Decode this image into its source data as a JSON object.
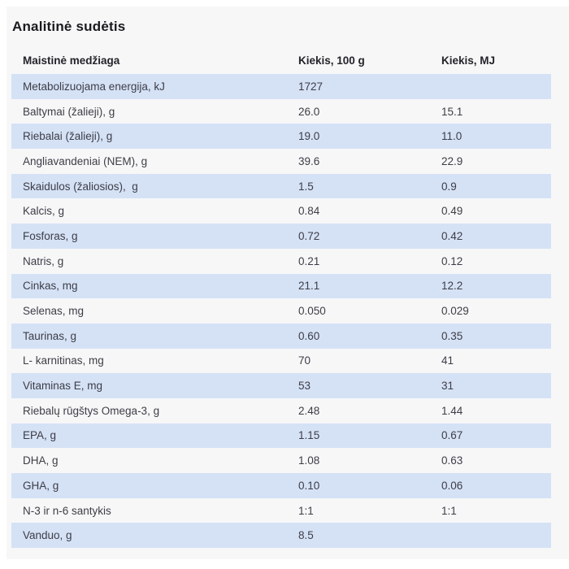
{
  "page": {
    "title": "Analitinė sudėtis"
  },
  "table": {
    "headers": {
      "nutrient": "Maistinė medžiaga",
      "per100g": "Kiekis, 100 g",
      "mj": "Kiekis, MJ"
    },
    "rows": [
      {
        "name": "Metabolizuojama energija, kJ",
        "q100": "1727",
        "qmj": ""
      },
      {
        "name": "Baltymai (žalieji), g",
        "q100": "26.0",
        "qmj": "15.1"
      },
      {
        "name": "Riebalai (žalieji), g",
        "q100": "19.0",
        "qmj": "11.0"
      },
      {
        "name": "Angliavandeniai (NEM), g",
        "q100": "39.6",
        "qmj": "22.9"
      },
      {
        "name": "Skaidulos (žaliosios),  g",
        "q100": "1.5",
        "qmj": "0.9"
      },
      {
        "name": "Kalcis, g",
        "q100": "0.84",
        "qmj": "0.49"
      },
      {
        "name": "Fosforas, g",
        "q100": "0.72",
        "qmj": "0.42"
      },
      {
        "name": "Natris, g",
        "q100": "0.21",
        "qmj": "0.12"
      },
      {
        "name": "Cinkas, mg",
        "q100": "21.1",
        "qmj": "12.2"
      },
      {
        "name": "Selenas, mg",
        "q100": "0.050",
        "qmj": "0.029"
      },
      {
        "name": "Taurinas, g",
        "q100": "0.60",
        "qmj": "0.35"
      },
      {
        "name": "L- karnitinas, mg",
        "q100": "70",
        "qmj": "41"
      },
      {
        "name": "Vitaminas E, mg",
        "q100": "53",
        "qmj": "31"
      },
      {
        "name": "Riebalų rūgštys Omega-3, g",
        "q100": "2.48",
        "qmj": "1.44"
      },
      {
        "name": "EPA, g",
        "q100": "1.15",
        "qmj": "0.67"
      },
      {
        "name": "DHA, g",
        "q100": "1.08",
        "qmj": "0.63"
      },
      {
        "name": "GHA, g",
        "q100": "0.10",
        "qmj": "0.06"
      },
      {
        "name": "N-3 ir n-6 santykis",
        "q100": "1:1",
        "qmj": "1:1"
      },
      {
        "name": "Vanduo, g",
        "q100": "8.5",
        "qmj": ""
      }
    ]
  },
  "colors": {
    "row_highlight": "#d5e2f6",
    "panel_background": "#f7f7f8",
    "body_text": "#3d3d46",
    "heading_text": "#1b1b1f"
  }
}
